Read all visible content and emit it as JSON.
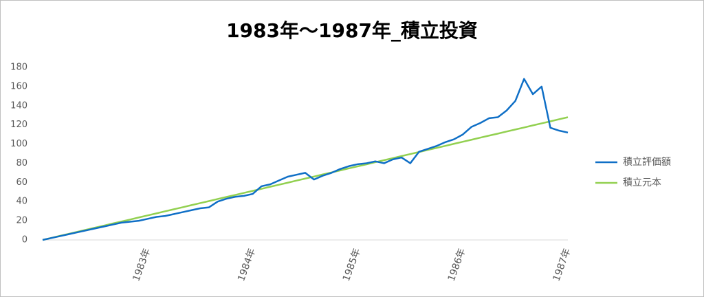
{
  "chart_data": {
    "type": "line",
    "title": "1983年～1987年_積立投資",
    "categories": [
      null,
      null,
      null,
      null,
      null,
      null,
      null,
      null,
      null,
      null,
      null,
      null,
      "1983年",
      null,
      null,
      null,
      null,
      null,
      null,
      null,
      null,
      null,
      null,
      null,
      "1984年",
      null,
      null,
      null,
      null,
      null,
      null,
      null,
      null,
      null,
      null,
      null,
      "1985年",
      null,
      null,
      null,
      null,
      null,
      null,
      null,
      null,
      null,
      null,
      null,
      "1986年",
      null,
      null,
      null,
      null,
      null,
      null,
      null,
      null,
      null,
      null,
      null,
      "1987年"
    ],
    "series": [
      {
        "name": "積立評価額",
        "color": "#0f6fc6",
        "values": [
          0,
          2,
          4,
          6,
          8,
          10,
          12,
          14,
          16,
          18,
          19,
          20,
          22,
          24,
          25,
          27,
          29,
          31,
          33,
          34,
          40,
          43,
          45,
          46,
          48,
          56,
          58,
          62,
          66,
          68,
          70,
          63,
          67,
          70,
          74,
          77,
          79,
          80,
          82,
          80,
          84,
          86,
          80,
          92,
          95,
          98,
          102,
          105,
          110,
          118,
          122,
          127,
          128,
          135,
          145,
          168,
          152,
          160,
          117,
          114,
          112
        ]
      },
      {
        "name": "積立元本",
        "color": "#92d050",
        "values": [
          0,
          2.1,
          4.3,
          6.4,
          8.5,
          10.7,
          12.8,
          14.9,
          17.1,
          19.2,
          21.3,
          23.5,
          25.6,
          27.7,
          29.9,
          32,
          34.1,
          36.3,
          38.4,
          40.5,
          42.7,
          44.8,
          46.9,
          49.1,
          51.2,
          53.3,
          55.5,
          57.6,
          59.7,
          61.9,
          64,
          66.1,
          68.3,
          70.4,
          72.5,
          74.7,
          76.8,
          78.9,
          81.1,
          83.2,
          85.3,
          87.5,
          89.6,
          91.7,
          93.9,
          96,
          98.1,
          100.3,
          102.4,
          104.5,
          106.7,
          108.8,
          110.9,
          113.1,
          115.2,
          117.3,
          119.5,
          121.6,
          123.7,
          125.9,
          128
        ]
      }
    ],
    "ylim": [
      0,
      180
    ],
    "yticks": [
      0,
      20,
      40,
      60,
      80,
      100,
      120,
      140,
      160,
      180
    ],
    "grid": false,
    "legend": "right"
  }
}
